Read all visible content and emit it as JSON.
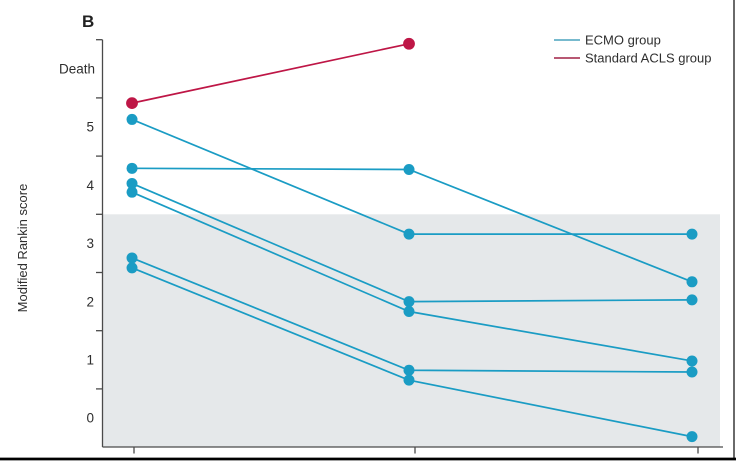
{
  "chart_data": {
    "type": "line",
    "panel_label": "B",
    "title": "",
    "xlabel": "",
    "ylabel": "Modified Rankin score",
    "y_axis": {
      "range": [
        -0.5,
        6.5
      ],
      "death_value": 6,
      "tick_values": [
        6.5,
        5.5,
        4.5,
        3.5,
        2.5,
        1.5,
        0.5
      ],
      "labels": [
        {
          "text": "Death",
          "value": 6
        },
        {
          "text": "5",
          "value": 5
        },
        {
          "text": "4",
          "value": 4
        },
        {
          "text": "3",
          "value": 3
        },
        {
          "text": "2",
          "value": 2
        },
        {
          "text": "1",
          "value": 1
        },
        {
          "text": "0",
          "value": 0
        }
      ]
    },
    "x_axis": {
      "num_positions": 3,
      "tick_labels_visible": false
    },
    "grid": false,
    "legend_position": "top-right",
    "shaded_region": {
      "from": -0.5,
      "to": 3.5,
      "color": "#e5e8ea",
      "meaning": "modified Rankin score 0-3 zone"
    },
    "legend": [
      {
        "label": "ECMO group",
        "color": "#4aa4bd"
      },
      {
        "label": "Standard ACLS group",
        "color": "#a02045"
      }
    ],
    "series": [
      {
        "name": "ecmo-patient-1",
        "group": "ECMO group",
        "color": "#1a9cc4",
        "values": [
          5.13,
          3.16,
          3.16
        ],
        "scores": [
          5,
          3,
          3
        ]
      },
      {
        "name": "ecmo-patient-2",
        "group": "ECMO group",
        "color": "#1a9cc4",
        "values": [
          4.29,
          4.27,
          2.34
        ],
        "scores": [
          4,
          4,
          2
        ]
      },
      {
        "name": "ecmo-patient-3",
        "group": "ECMO group",
        "color": "#1a9cc4",
        "values": [
          4.03,
          2.0,
          2.03
        ],
        "scores": [
          4,
          2,
          2
        ]
      },
      {
        "name": "ecmo-patient-4",
        "group": "ECMO group",
        "color": "#1a9cc4",
        "values": [
          3.88,
          1.83,
          0.98
        ],
        "scores": [
          4,
          2,
          1
        ]
      },
      {
        "name": "ecmo-patient-5",
        "group": "ECMO group",
        "color": "#1a9cc4",
        "values": [
          2.75,
          0.82,
          0.79
        ],
        "scores": [
          3,
          1,
          1
        ]
      },
      {
        "name": "ecmo-patient-6",
        "group": "ECMO group",
        "color": "#1a9cc4",
        "values": [
          2.58,
          0.65,
          -0.32
        ],
        "scores": [
          3,
          1,
          0
        ]
      },
      {
        "name": "acls-patient-1",
        "group": "Standard ACLS group",
        "color": "#be1646",
        "values": [
          5.41,
          6.43,
          null
        ],
        "scores": [
          5,
          "Death",
          null
        ]
      }
    ]
  }
}
